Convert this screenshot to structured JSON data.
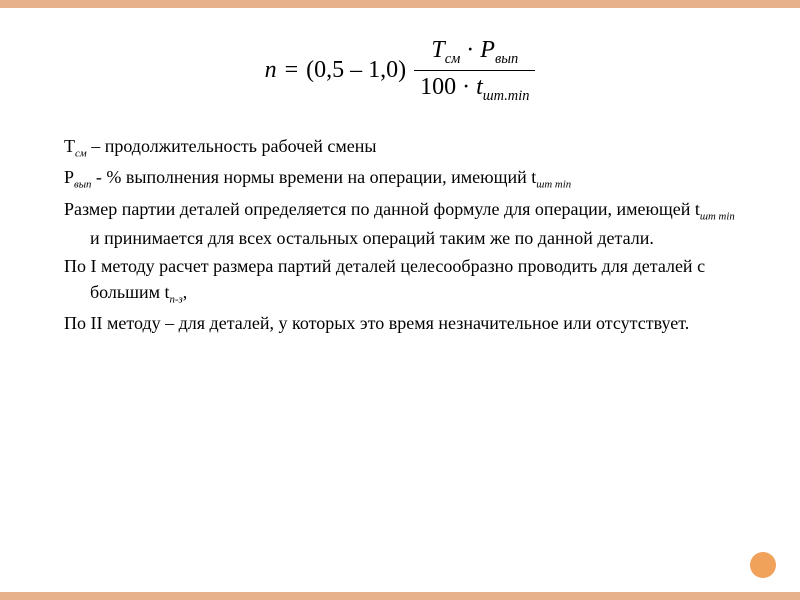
{
  "colors": {
    "accent": "#e7b18c",
    "circle": "#f0a15a",
    "text": "#000000",
    "background": "#ffffff"
  },
  "formula": {
    "lhs_var": "n",
    "equals": "=",
    "coef": "(0,5 – 1,0)",
    "num_l_var": "Т",
    "num_l_sub": "см",
    "dot": "·",
    "num_r_var": "Р",
    "num_r_sub": "вып",
    "den_const": "100",
    "den_var": "t",
    "den_sub": "шт.min"
  },
  "defs": {
    "line1_pre": "Т",
    "line1_sub": "см",
    "line1_post": " – продолжительность рабочей смены",
    "line2_pre": "Р",
    "line2_sub": "вып",
    "line2_mid": " - % выполнения нормы времени на операции, имеющий t",
    "line2_sub2": "шт min"
  },
  "body": {
    "p1_a": "Размер партии деталей определяется по данной формуле для операции, имеющей t",
    "p1_sub": "шт min",
    "p1_b": " и принимается для всех остальных операций таким же по данной детали.",
    "p2_a": "По I методу расчет размера партий деталей целесообразно проводить для деталей с большим t",
    "p2_sub": "п-з",
    "p2_b": ",",
    "p3": "По II методу – для деталей, у которых это время незначительное или отсутствует."
  }
}
